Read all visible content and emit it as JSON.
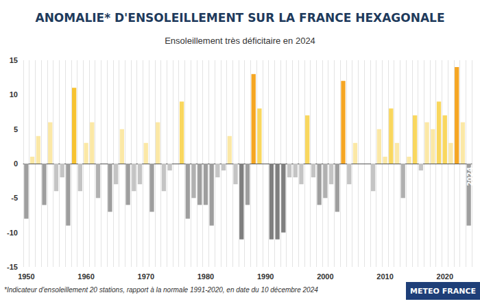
{
  "chart_data": {
    "type": "bar",
    "title": "ANOMALIE* D'ENSOLEILLEMENT SUR LA FRANCE HEXAGONALE",
    "subtitle": "Ensoleillement très déficitaire en 2024",
    "footnote": "*Indicateur d'ensoleillement 20 stations, rapport à la normale 1991-2020, en date du 10 décembre 2024",
    "source": "METEO FRANCE",
    "annotation": "2024",
    "categories": [
      "1950",
      null,
      null,
      null,
      null,
      null,
      null,
      null,
      null,
      null,
      "1960",
      null,
      null,
      null,
      null,
      null,
      null,
      null,
      null,
      null,
      "1970",
      null,
      null,
      null,
      null,
      null,
      null,
      null,
      null,
      null,
      "1980",
      null,
      null,
      null,
      null,
      null,
      null,
      null,
      null,
      null,
      "1990",
      null,
      null,
      null,
      null,
      null,
      null,
      null,
      null,
      null,
      "2000",
      null,
      null,
      null,
      null,
      null,
      null,
      null,
      null,
      null,
      "2010",
      null,
      null,
      null,
      null,
      null,
      null,
      null,
      null,
      null,
      "2020",
      null,
      null,
      null,
      null
    ],
    "values": [
      -8,
      1,
      4,
      -6,
      6,
      -4,
      -2,
      -9,
      11,
      -4,
      3,
      6,
      -5,
      0,
      -7,
      -3,
      5,
      -6,
      -4,
      -3,
      3,
      -7,
      6,
      -4,
      -1,
      0,
      9,
      -8,
      -5,
      -6,
      -6,
      -9,
      -2,
      -1,
      4,
      -3,
      -11,
      -6,
      13,
      8,
      0,
      -11,
      -11,
      -10,
      -2,
      -2,
      -3,
      7,
      -2,
      -6,
      -5,
      -3,
      -7,
      12,
      -3,
      3,
      0,
      0,
      -4,
      5,
      1,
      8,
      3,
      -5,
      1,
      7,
      -1,
      6,
      5,
      9,
      7,
      3,
      14,
      6,
      -9
    ],
    "colors": [
      "#9e9e9e",
      "#fbe8a6",
      "#fbe8a6",
      "#9e9e9e",
      "#fbe8a6",
      "#c4c4c4",
      "#c4c4c4",
      "#9e9e9e",
      "#f7c331",
      "#c4c4c4",
      "#fbe8a6",
      "#fbe8a6",
      "#b0b0b0",
      "#c4c4c4",
      "#9e9e9e",
      "#c4c4c4",
      "#fbe8a6",
      "#9e9e9e",
      "#c4c4c4",
      "#c4c4c4",
      "#fbe8a6",
      "#9e9e9e",
      "#fbe8a6",
      "#c4c4c4",
      "#c4c4c4",
      "#c4c4c4",
      "#f9d75e",
      "#9e9e9e",
      "#b0b0b0",
      "#9e9e9e",
      "#9e9e9e",
      "#9e9e9e",
      "#c4c4c4",
      "#c4c4c4",
      "#fbe8a6",
      "#c4c4c4",
      "#7f7f7f",
      "#9e9e9e",
      "#f5a623",
      "#f9d75e",
      "#c4c4c4",
      "#7f7f7f",
      "#7f7f7f",
      "#7f7f7f",
      "#c4c4c4",
      "#c4c4c4",
      "#c4c4c4",
      "#f9d75e",
      "#c4c4c4",
      "#9e9e9e",
      "#b0b0b0",
      "#c4c4c4",
      "#9e9e9e",
      "#f5a623",
      "#c4c4c4",
      "#fbe8a6",
      "#c4c4c4",
      "#c4c4c4",
      "#c4c4c4",
      "#fbe8a6",
      "#fbe8a6",
      "#f9d75e",
      "#fbe8a6",
      "#b0b0b0",
      "#fbe8a6",
      "#f9d75e",
      "#c4c4c4",
      "#fbe8a6",
      "#fbe8a6",
      "#f9d75e",
      "#f9d75e",
      "#fbe8a6",
      "#f5a623",
      "#fbe8a6",
      "#9e9e9e"
    ],
    "ylim": [
      -15,
      15
    ],
    "yticks": [
      -15,
      -10,
      -5,
      0,
      5,
      10,
      15
    ],
    "grid": true
  }
}
